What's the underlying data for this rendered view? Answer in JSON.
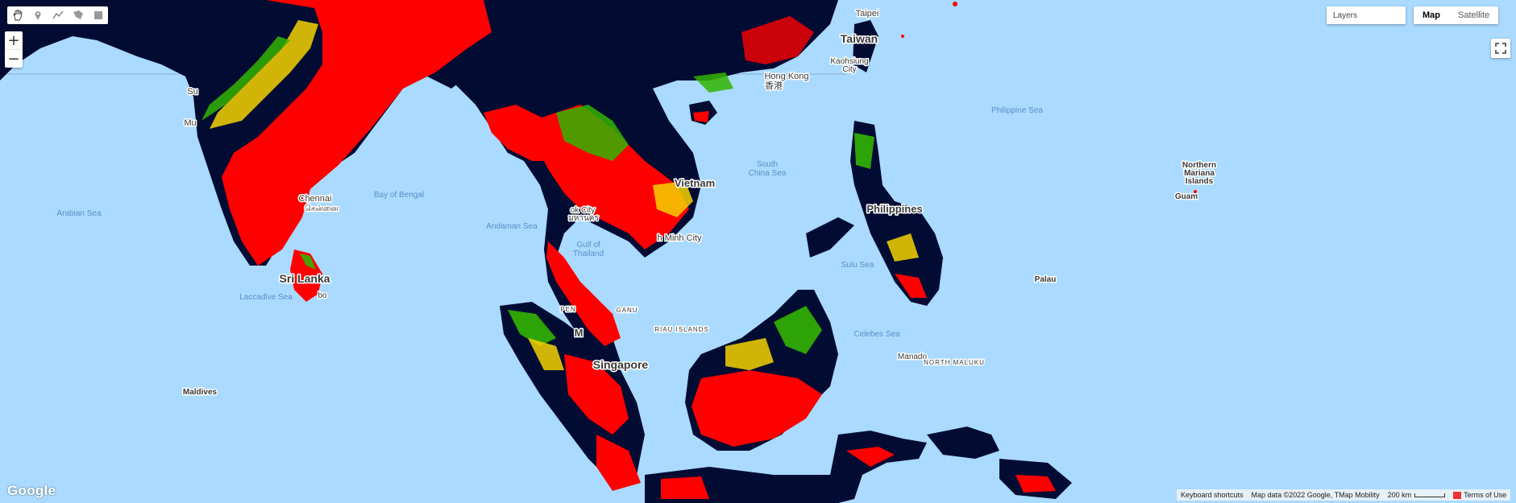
{
  "toolbar": {
    "tools": [
      {
        "name": "pan-hand-icon"
      },
      {
        "name": "marker-icon"
      },
      {
        "name": "line-icon"
      },
      {
        "name": "polygon-icon"
      },
      {
        "name": "rectangle-icon"
      }
    ]
  },
  "zoom": {
    "in_label": "+",
    "out_label": "−"
  },
  "layers": {
    "label": "Layers"
  },
  "map_type": {
    "map_label": "Map",
    "satellite_label": "Satellite",
    "active": "Map"
  },
  "labels": {
    "arabian_sea": "Arabian Sea",
    "bay_of_bengal": "Bay of Bengal",
    "andaman_sea": "Andaman Sea",
    "laccadive_sea": "Laccadive Sea",
    "gulf_thailand_1": "Gulf of",
    "gulf_thailand_2": "Thailand",
    "south_china_sea_1": "South",
    "south_china_sea_2": "China Sea",
    "philippine_sea": "Philippine Sea",
    "sulu_sea": "Sulu Sea",
    "celebes_sea": "Celebes Sea",
    "taipei": "Taipei",
    "taiwan": "Taiwan",
    "kaohsiung_1": "Kaohsiung",
    "kaohsiung_2": "City",
    "hong_kong": "Hong Kong",
    "hong_kong_zh": "香港",
    "chennai": "Chennai",
    "chennai_ta": "சென்னை",
    "sri_lanka": "Sri Lanka",
    "colombo": "bo",
    "bangkok_1": "ok City",
    "bangkok_2": "มหานคร",
    "hcmc": "h Minh City",
    "vietnam": "Vietnam",
    "philippines": "Philippines",
    "northern_mariana_1": "Northern",
    "northern_mariana_2": "Mariana",
    "northern_mariana_3": "Islands",
    "guam": "Guam",
    "palau": "Palau",
    "maldives": "Maldives",
    "singapore": "Singapore",
    "riau": "RIAU ISLANDS",
    "manado": "Manado",
    "north_maluku": "NORTH MALUKU",
    "mumbai": "Mu",
    "surat": "Su",
    "malaysia": "M",
    "penang": "PEN",
    "terengganu": "GANU"
  },
  "footer": {
    "keyboard": "Keyboard shortcuts",
    "attribution": "Map data ©2022 Google, TMap Mobility",
    "scale": "200 km",
    "terms": "Terms of Use"
  },
  "brand": {
    "logo": "Google"
  },
  "colors": {
    "sea": "#aadaff",
    "land_dark": "#020c33",
    "high": "#ff0000",
    "mid": "#f5d200",
    "low": "#32b400"
  }
}
